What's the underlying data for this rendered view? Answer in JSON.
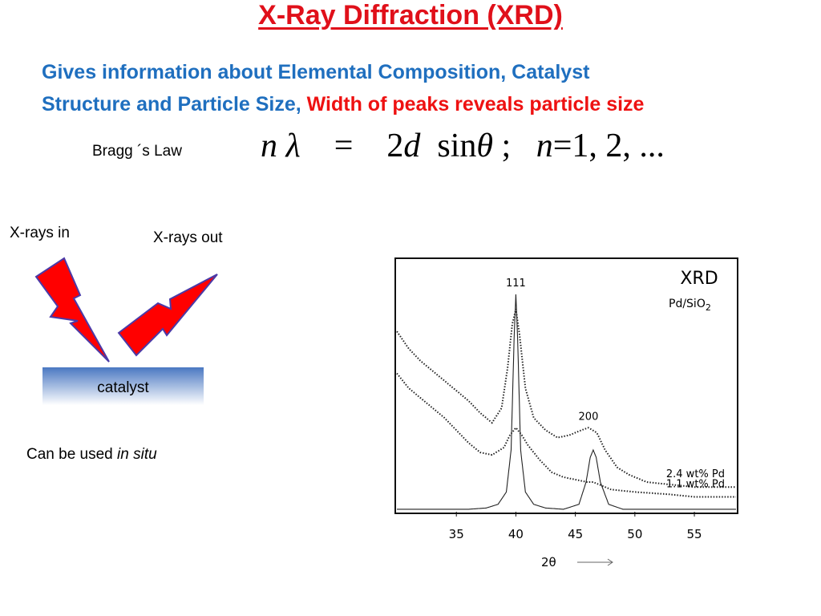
{
  "title": "X-Ray Diffraction (XRD)",
  "subtitle": {
    "line1": "Gives information about Elemental Composition, Catalyst",
    "line2_blue": "Structure and Particle Size,",
    "line2_red": "Width of peaks reveals particle size"
  },
  "bragg": {
    "label": "Bragg ´s Law",
    "eq_n": "n",
    "eq_lambda": "λ",
    "eq_equals": "=",
    "eq_two": "2",
    "eq_d": "d",
    "eq_sin": "sin",
    "eq_theta": "θ",
    "eq_semi": ";",
    "eq_n2": "n",
    "eq_tail": "=1, 2, ..."
  },
  "diagram": {
    "xrays_in": "X-rays in",
    "xrays_out": "X-rays out",
    "catalyst": "catalyst",
    "bolt_color": "#ff0000",
    "bolt_outline": "#4a3aa8",
    "catalyst_color": "#4a78c2"
  },
  "insitu": {
    "prefix": "Can be used ",
    "italic": "in situ"
  },
  "chart_data": {
    "type": "line",
    "title": "XRD",
    "subtitle_main": "Pd/SiO",
    "subtitle_sub": "2",
    "x_axis_label": "2θ",
    "xlim": [
      30,
      58.5
    ],
    "ylim": [
      0,
      100
    ],
    "ticks": [
      35,
      40,
      45,
      50,
      55
    ],
    "tick_labels": [
      "35",
      "40",
      "45",
      "50",
      "55"
    ],
    "peak_labels": [
      {
        "text": "111",
        "x": 40
      },
      {
        "text": "200",
        "x": 46.1
      }
    ],
    "series": [
      {
        "name": "2.4 wt% Pd",
        "style": "dotted",
        "x": [
          30,
          31,
          32,
          33,
          34,
          35,
          36,
          37,
          38,
          38.8,
          39.3,
          39.7,
          40.0,
          40.3,
          40.8,
          41.5,
          42.5,
          43.5,
          44.5,
          45.5,
          46.1,
          46.8,
          47.5,
          48.5,
          49.5,
          51,
          53,
          55,
          57,
          58.5
        ],
        "y": [
          73,
          66,
          61,
          57,
          53,
          49,
          45,
          40,
          36,
          42,
          58,
          76,
          82,
          72,
          50,
          38,
          33,
          30,
          31,
          33,
          34,
          32,
          25,
          18,
          15,
          12,
          11,
          10,
          10,
          10
        ]
      },
      {
        "name": "1.1 wt% Pd",
        "style": "dotted",
        "x": [
          30,
          31,
          32,
          33,
          34,
          35,
          36,
          37,
          38,
          39,
          39.5,
          40.0,
          40.5,
          41.0,
          42,
          43,
          44,
          45,
          46,
          46.5,
          47,
          48,
          50,
          53,
          55,
          58.5
        ],
        "y": [
          56,
          50,
          46,
          42,
          38,
          33,
          28,
          24,
          23,
          26,
          31,
          34,
          31,
          27,
          21,
          16,
          14,
          13,
          12,
          12,
          11,
          9,
          8,
          7,
          6,
          6
        ]
      },
      {
        "name": "",
        "style": "solid",
        "x": [
          30,
          34,
          36,
          37.5,
          38.5,
          39.2,
          39.6,
          39.85,
          40.0,
          40.15,
          40.4,
          40.8,
          41.5,
          42.5,
          44,
          45.3,
          45.9,
          46.25,
          46.5,
          46.75,
          47.1,
          47.8,
          49,
          52,
          58.5
        ],
        "y": [
          1,
          1,
          1,
          1.5,
          3,
          8,
          25,
          70,
          88,
          70,
          25,
          8,
          3,
          1.5,
          1,
          3,
          12,
          22,
          25,
          22,
          12,
          3,
          1,
          1,
          1
        ]
      }
    ]
  }
}
